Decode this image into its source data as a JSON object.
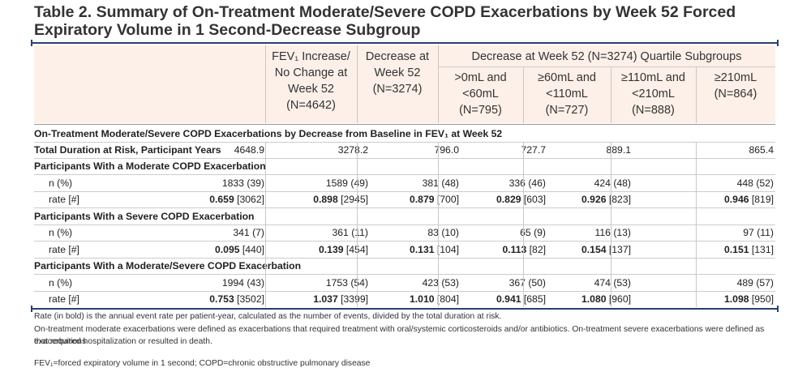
{
  "title": "Table 2. Summary of On-Treatment Moderate/Severe COPD Exacerbations by Week 52 Forced Expiratory Volume in 1 Second-Decrease Subgroup",
  "header": {
    "col1": [
      "FEV₁ Increase/",
      "No Change at",
      "Week 52",
      "(N=4642)"
    ],
    "col2": [
      "Decrease at",
      "Week 52",
      "(N=3274)"
    ],
    "group": "Decrease at Week 52 (N=3274) Quartile Subgroups",
    "q1": [
      ">0mL and",
      "<60mL",
      "(N=795)"
    ],
    "q2": [
      "≥60mL and",
      "<110mL",
      "(N=727)"
    ],
    "q3": [
      "≥110mL and",
      "<210mL",
      "(N=888)"
    ],
    "q4": [
      "≥210mL",
      "(N=864)"
    ]
  },
  "sections": {
    "main_label": "On-Treatment Moderate/Severe COPD Exacerbations by Decrease from Baseline in FEV₁ at Week 52",
    "duration_label": "Total Duration at Risk, Participant Years",
    "duration": [
      "4648.9",
      "3278.2",
      "796.0",
      "727.7",
      "889.1",
      "865.4"
    ],
    "moderate_label": "Participants With a Moderate COPD Exacerbation",
    "severe_label": "Participants With a Severe COPD Exacerbation",
    "modsev_label": "Participants With a Moderate/Severe COPD Exacerbation",
    "n_label": "n (%)",
    "rate_label": "rate [#]",
    "moderate_n": [
      "1833 (39)",
      "1589 (49)",
      "381 (48)",
      "336 (46)",
      "424 (48)",
      "448 (52)"
    ],
    "moderate_rate": [
      "0.659",
      "0.898",
      "0.879",
      "0.829",
      "0.926",
      "0.946"
    ],
    "moderate_cnt": [
      "[3062]",
      "[2945]",
      "[700]",
      "[603]",
      "[823]",
      "[819]"
    ],
    "severe_n": [
      "341 (7)",
      "361 (11)",
      "83 (10)",
      "65 (9)",
      "116 (13)",
      "97 (11)"
    ],
    "severe_rate": [
      "0.095",
      "0.139",
      "0.131",
      "0.113",
      "0.154",
      "0.151"
    ],
    "severe_cnt": [
      "[440]",
      "[454]",
      "[104]",
      "[82]",
      "[137]",
      "[131]"
    ],
    "modsev_n": [
      "1994 (43)",
      "1753 (54)",
      "423 (53)",
      "367 (50)",
      "474 (53)",
      "489 (57)"
    ],
    "modsev_rate": [
      "0.753",
      "1.037",
      "1.010",
      "0.941",
      "1.080",
      "1.098"
    ],
    "modsev_cnt": [
      "[3502]",
      "[3399]",
      "[804]",
      "[685]",
      "[960]",
      "[950]"
    ]
  },
  "footnotes": [
    "Rate (in bold) is the annual event rate per patient-year, calculated as the number of events, divided by the total duration at risk.",
    "On-treatment moderate exacerbations were defined as exacerbations that required treatment with oral/systemic corticosteroids and/or antibiotics. On-treatment severe exacerbations were defined as exacerbations",
    "that required hospitalization or resulted in death.",
    "FEV₁=forced expiratory volume in 1 second; COPD=chronic obstructive pulmonary disease"
  ],
  "colors": {
    "rule": "#2a3f6f",
    "header_band": "#fdf0e8",
    "text": "#333333"
  }
}
